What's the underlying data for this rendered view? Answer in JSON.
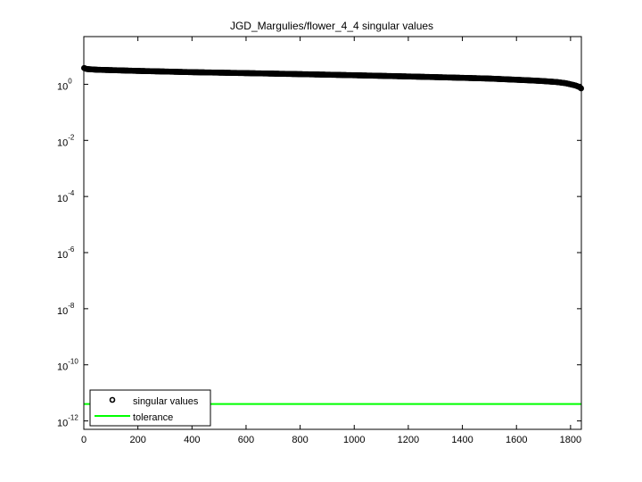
{
  "chart_data": {
    "type": "scatter",
    "title": "JGD_Margulies/flower_4_4 singular values",
    "xlabel": "",
    "ylabel": "",
    "xlim": [
      0,
      1840
    ],
    "ylim_log10": [
      -12.3,
      1.7
    ],
    "yscale": "log",
    "grid": false,
    "legend_position": "bottom-left",
    "x_ticks": [
      0,
      200,
      400,
      600,
      800,
      1000,
      1200,
      1400,
      1600,
      1800
    ],
    "y_ticks": [
      {
        "base": "10",
        "exp": "0",
        "value": 0
      },
      {
        "base": "10",
        "exp": "-2",
        "value": -2
      },
      {
        "base": "10",
        "exp": "-4",
        "value": -4
      },
      {
        "base": "10",
        "exp": "-6",
        "value": -6
      },
      {
        "base": "10",
        "exp": "-8",
        "value": -8
      },
      {
        "base": "10",
        "exp": "-10",
        "value": -10
      },
      {
        "base": "10",
        "exp": "-12",
        "value": -12
      }
    ],
    "series": [
      {
        "name": "singular values",
        "kind": "markers",
        "color": "#000000",
        "n_points": 1840,
        "x": [
          1,
          10,
          50,
          100,
          200,
          300,
          400,
          500,
          600,
          700,
          800,
          900,
          1000,
          1100,
          1200,
          1300,
          1400,
          1500,
          1600,
          1650,
          1700,
          1750,
          1780,
          1800,
          1820,
          1835,
          1840
        ],
        "y": [
          3.8,
          3.5,
          3.3,
          3.2,
          3.0,
          2.85,
          2.7,
          2.6,
          2.5,
          2.4,
          2.3,
          2.2,
          2.1,
          2.0,
          1.9,
          1.8,
          1.7,
          1.6,
          1.45,
          1.38,
          1.3,
          1.2,
          1.1,
          1.0,
          0.9,
          0.78,
          0.7
        ]
      },
      {
        "name": "tolerance",
        "kind": "line",
        "color": "#00ff00",
        "y": 4e-12
      }
    ]
  }
}
